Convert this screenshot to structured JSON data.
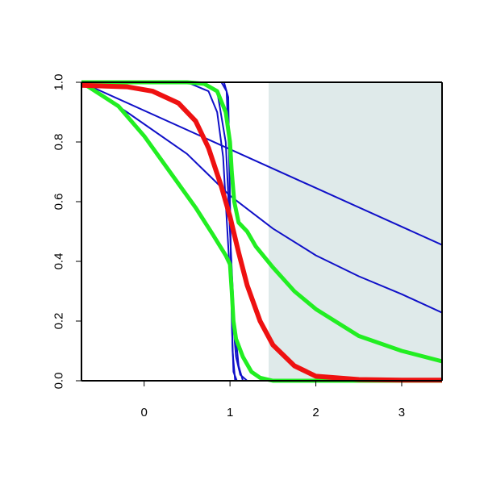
{
  "chart_data": {
    "type": "line",
    "title": "",
    "xlabel": "",
    "ylabel": "",
    "xlim": [
      -0.73,
      3.47
    ],
    "ylim": [
      0,
      1
    ],
    "x_ticks": [
      0,
      1,
      2,
      3
    ],
    "x_tick_labels": [
      "0",
      "1",
      "2",
      "3"
    ],
    "y_ticks": [
      0,
      0.2,
      0.4,
      0.6,
      0.8,
      1
    ],
    "y_tick_labels": [
      "0.0",
      "0.2",
      "0.4",
      "0.6",
      "0.8",
      "1.0"
    ],
    "grid": false,
    "legend": "none",
    "shaded_region": {
      "x_from": 1.45,
      "x_to": 3.47,
      "color": "#dfeaea"
    },
    "series": [
      {
        "role": "straight-line-1",
        "color": "#1010c8",
        "points": [
          [
            -0.73,
            1.0
          ],
          [
            3.47,
            0.455
          ]
        ]
      },
      {
        "role": "convex-decay",
        "color": "#1010c8",
        "points": [
          [
            -0.73,
            1.0
          ],
          [
            -0.2,
            0.9
          ],
          [
            0.5,
            0.76
          ],
          [
            1.0,
            0.62
          ],
          [
            1.5,
            0.51
          ],
          [
            2.0,
            0.42
          ],
          [
            2.5,
            0.35
          ],
          [
            3.0,
            0.29
          ],
          [
            3.47,
            0.228
          ]
        ]
      },
      {
        "role": "steep-step-1",
        "color": "#1010c8",
        "points": [
          [
            -0.73,
            1.0
          ],
          [
            0.5,
            1.0
          ],
          [
            0.75,
            0.97
          ],
          [
            0.85,
            0.9
          ],
          [
            0.92,
            0.75
          ],
          [
            0.97,
            0.5
          ],
          [
            1.02,
            0.25
          ],
          [
            1.07,
            0.08
          ],
          [
            1.12,
            0.02
          ],
          [
            1.2,
            0.0
          ],
          [
            3.47,
            0.0
          ]
        ]
      },
      {
        "role": "steep-step-2",
        "color": "#1010c8",
        "points": [
          [
            -0.73,
            1.0
          ],
          [
            0.7,
            1.0
          ],
          [
            0.85,
            0.97
          ],
          [
            0.95,
            0.8
          ],
          [
            1.0,
            0.5
          ],
          [
            1.05,
            0.2
          ],
          [
            1.1,
            0.05
          ],
          [
            1.15,
            0.0
          ],
          [
            3.47,
            0.0
          ]
        ]
      },
      {
        "role": "steep-step-3",
        "color": "#1010c8",
        "points": [
          [
            -0.73,
            1.0
          ],
          [
            0.9,
            1.0
          ],
          [
            0.96,
            0.97
          ],
          [
            0.99,
            0.75
          ],
          [
            1.01,
            0.4
          ],
          [
            1.03,
            0.1
          ],
          [
            1.06,
            0.0
          ],
          [
            3.47,
            0.0
          ]
        ]
      },
      {
        "role": "steep-step-4",
        "color": "#1010c8",
        "points": [
          [
            -0.73,
            1.0
          ],
          [
            0.93,
            1.0
          ],
          [
            0.98,
            0.95
          ],
          [
            1.0,
            0.6
          ],
          [
            1.02,
            0.2
          ],
          [
            1.04,
            0.03
          ],
          [
            1.08,
            0.0
          ],
          [
            3.47,
            0.0
          ]
        ]
      },
      {
        "role": "green-sigmoid-lower",
        "color": "#22ee22",
        "points": [
          [
            -0.73,
            1.0
          ],
          [
            -0.3,
            0.92
          ],
          [
            0.0,
            0.82
          ],
          [
            0.3,
            0.7
          ],
          [
            0.6,
            0.58
          ],
          [
            0.8,
            0.49
          ],
          [
            0.95,
            0.42
          ],
          [
            1.0,
            0.39
          ],
          [
            1.02,
            0.3
          ],
          [
            1.04,
            0.2
          ],
          [
            1.07,
            0.14
          ],
          [
            1.15,
            0.08
          ],
          [
            1.25,
            0.03
          ],
          [
            1.35,
            0.01
          ],
          [
            1.5,
            0.0
          ],
          [
            3.47,
            0.0
          ]
        ]
      },
      {
        "role": "green-sigmoid-upper",
        "color": "#22ee22",
        "points": [
          [
            -0.73,
            1.0
          ],
          [
            0.5,
            1.0
          ],
          [
            0.7,
            0.995
          ],
          [
            0.85,
            0.97
          ],
          [
            0.95,
            0.9
          ],
          [
            1.0,
            0.8
          ],
          [
            1.02,
            0.7
          ],
          [
            1.05,
            0.6
          ],
          [
            1.1,
            0.53
          ],
          [
            1.2,
            0.5
          ],
          [
            1.3,
            0.45
          ],
          [
            1.5,
            0.38
          ],
          [
            1.75,
            0.3
          ],
          [
            2.0,
            0.24
          ],
          [
            2.5,
            0.15
          ],
          [
            3.0,
            0.1
          ],
          [
            3.47,
            0.065
          ]
        ]
      },
      {
        "role": "red-sigmoid",
        "color": "#ee1111",
        "points": [
          [
            -0.73,
            0.99
          ],
          [
            -0.2,
            0.985
          ],
          [
            0.1,
            0.97
          ],
          [
            0.4,
            0.93
          ],
          [
            0.6,
            0.87
          ],
          [
            0.75,
            0.78
          ],
          [
            0.9,
            0.65
          ],
          [
            1.0,
            0.55
          ],
          [
            1.1,
            0.43
          ],
          [
            1.2,
            0.32
          ],
          [
            1.35,
            0.2
          ],
          [
            1.5,
            0.12
          ],
          [
            1.75,
            0.05
          ],
          [
            2.0,
            0.015
          ],
          [
            2.5,
            0.004
          ],
          [
            3.0,
            0.002
          ],
          [
            3.47,
            0.002
          ]
        ]
      }
    ]
  },
  "style": {
    "thin_line_width": 2,
    "green_line_width": 5,
    "red_line_width": 6
  }
}
